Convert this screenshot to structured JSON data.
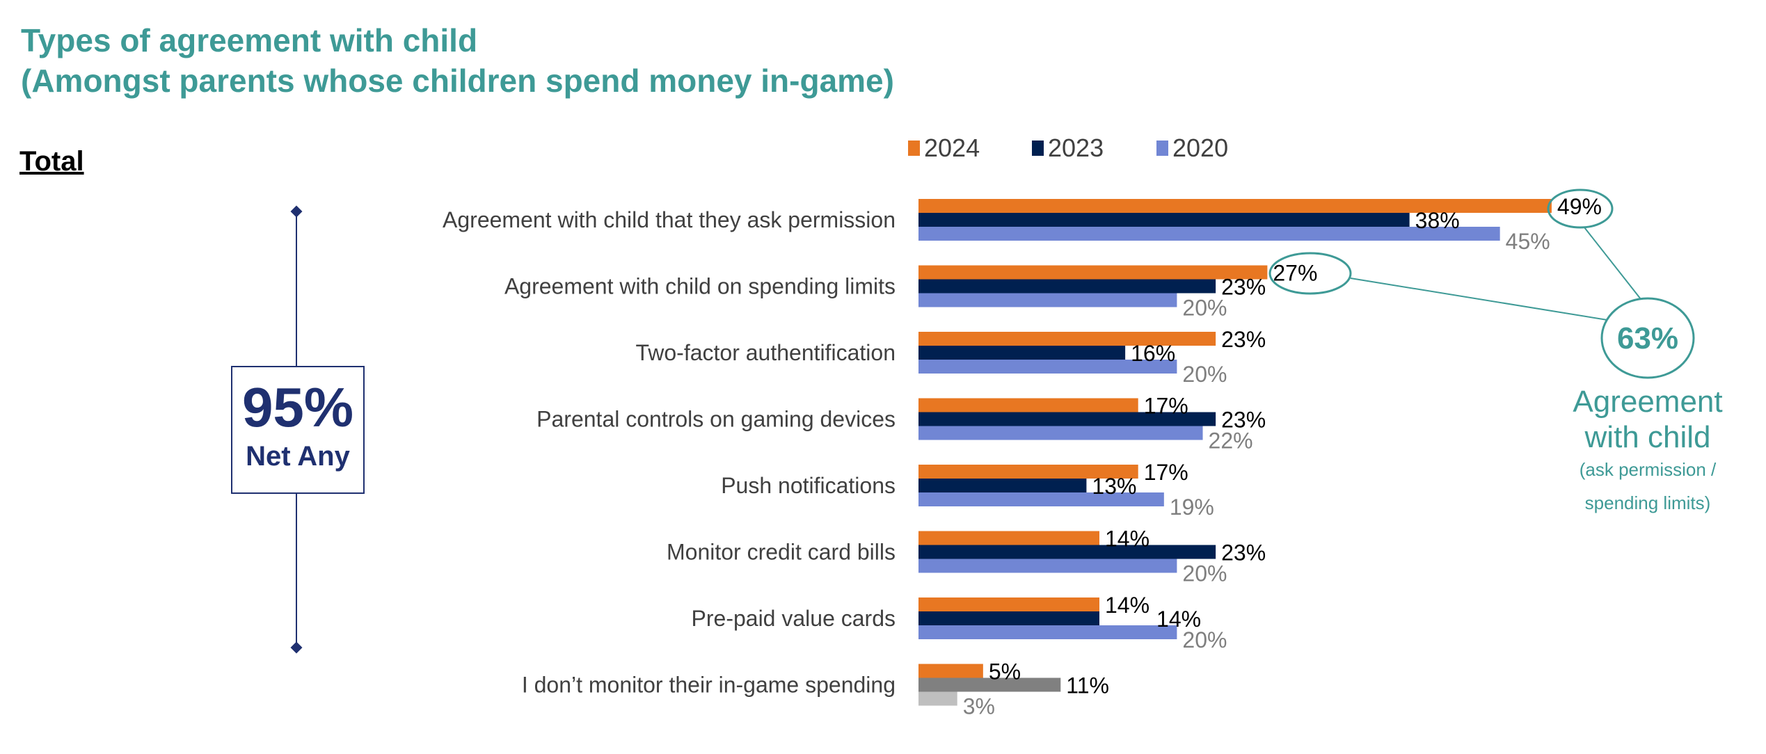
{
  "chart_data": {
    "type": "bar",
    "orientation": "horizontal",
    "title": "Types of agreement with child",
    "subtitle": "(Amongst parents whose children spend money in-game)",
    "section_label": "Total",
    "categories": [
      "Agreement with child that they ask permission",
      "Agreement with child on spending limits",
      "Two-factor authentification",
      "Parental controls on gaming devices",
      "Push notifications",
      "Monitor credit card bills",
      "Pre-paid value cards",
      "I don’t monitor their in-game spending"
    ],
    "series": [
      {
        "name": "2024",
        "color": "#E87722",
        "values": [
          49,
          27,
          23,
          17,
          17,
          14,
          14,
          5
        ]
      },
      {
        "name": "2023",
        "color": "#002050",
        "values": [
          38,
          23,
          16,
          23,
          13,
          23,
          14,
          11
        ]
      },
      {
        "name": "2020",
        "color": "#7186D4",
        "values": [
          45,
          20,
          20,
          22,
          19,
          20,
          20,
          3
        ]
      }
    ],
    "last_category_colors": [
      "#E87722",
      "#808080",
      "#BFBFBF"
    ],
    "unit": "%",
    "xlim": [
      0,
      50
    ],
    "grid": false,
    "legend_placement": "top",
    "net_any": {
      "value": "95%",
      "label": "Net Any"
    },
    "annotation": {
      "value": "63%",
      "line1": "Agreement",
      "line2": "with child",
      "line3": "(ask permission /",
      "line4": "spending limits)"
    },
    "colors": {
      "teal": "#3E9A96",
      "navy": "#1F3070"
    }
  }
}
